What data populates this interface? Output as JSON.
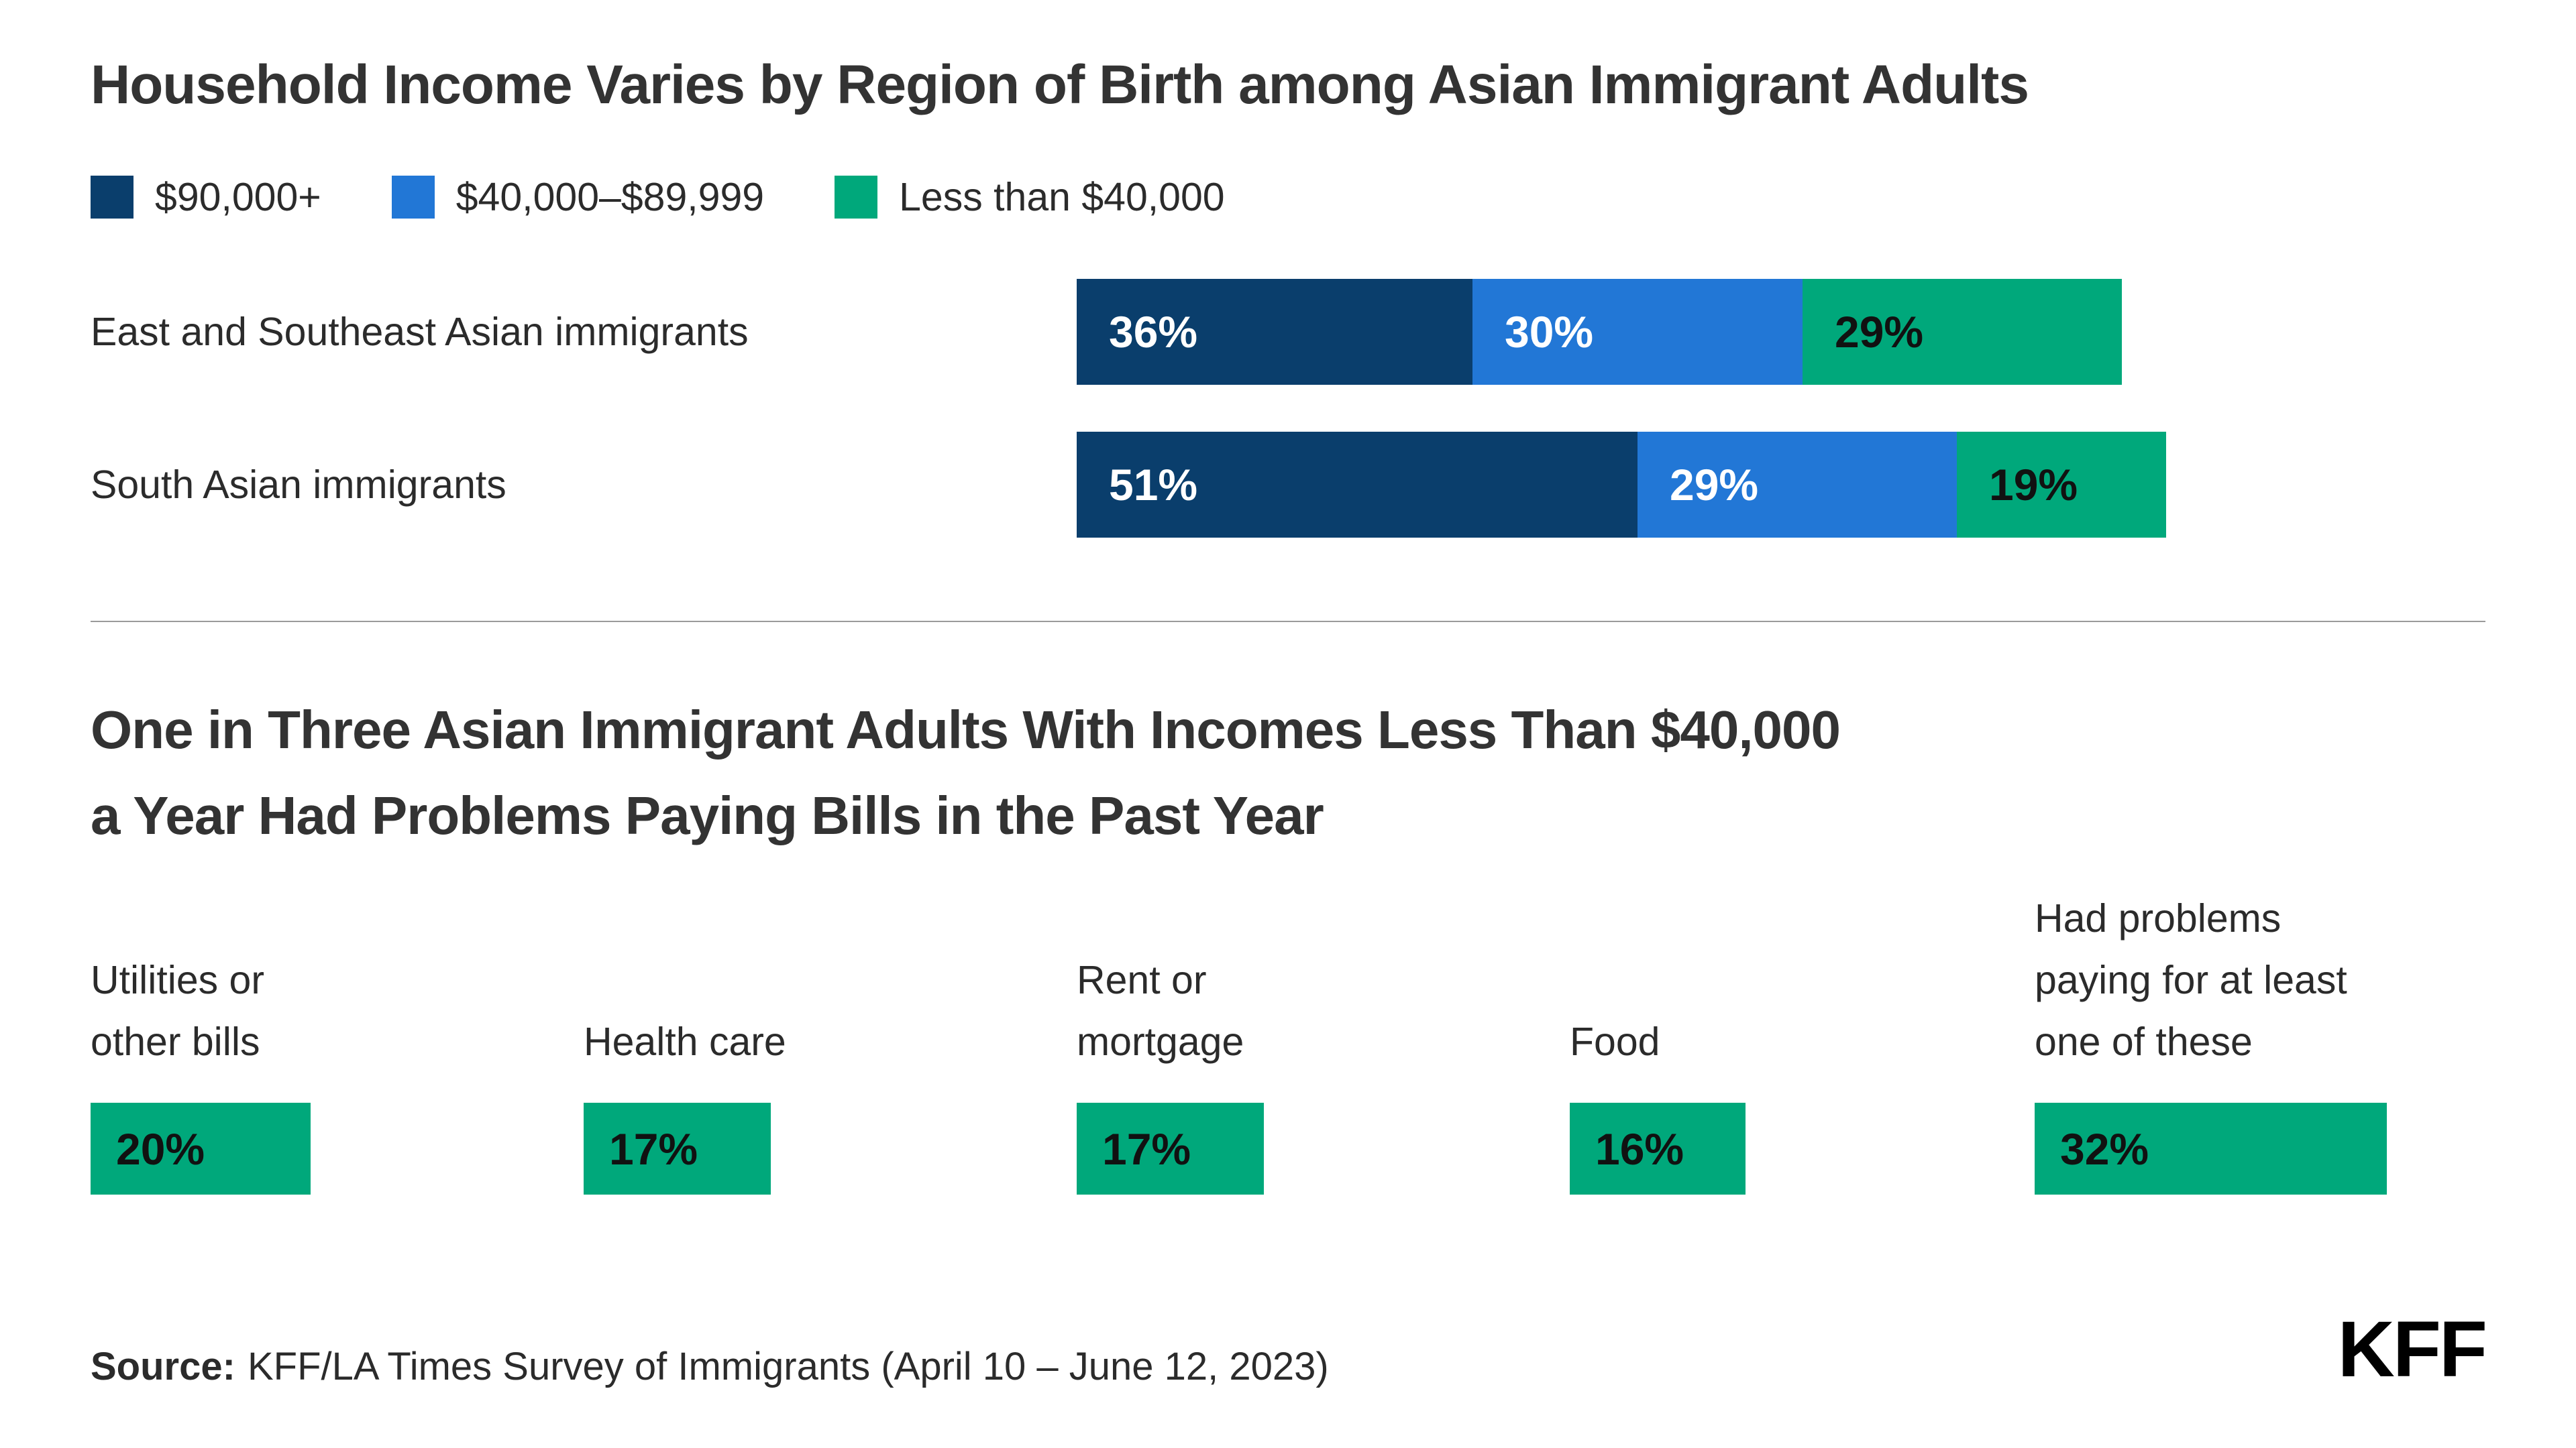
{
  "colors": {
    "dark_blue": "#0A3E6C",
    "mid_blue": "#2277D6",
    "green": "#00A87B",
    "title_text": "#333333",
    "body_text": "#2B2B2B",
    "divider": "#9A9A9A"
  },
  "chart_data": [
    {
      "type": "bar",
      "orientation": "horizontal",
      "stacked": true,
      "title": "Household Income Varies by Region of Birth among Asian Immigrant Adults",
      "categories": [
        "East and Southeast Asian immigrants",
        "South Asian immigrants"
      ],
      "series": [
        {
          "name": "$90,000+",
          "color": "#0A3E6C",
          "label_color": "#FFFFFF",
          "values": [
            36,
            51
          ]
        },
        {
          "name": "$40,000–$89,999",
          "color": "#2277D6",
          "label_color": "#FFFFFF",
          "values": [
            30,
            29
          ]
        },
        {
          "name": "Less than $40,000",
          "color": "#00A87B",
          "label_color": "#111111",
          "values": [
            29,
            19
          ]
        }
      ],
      "value_suffix": "%",
      "xlim": [
        0,
        100
      ],
      "legend_position": "top-left",
      "grid": false
    },
    {
      "type": "bar",
      "orientation": "horizontal",
      "stacked": false,
      "title": "One in Three Asian Immigrant Adults With Incomes Less Than $40,000 a Year Had Problems Paying Bills in the Past Year",
      "title_lines": [
        "One in Three Asian Immigrant Adults With Incomes Less Than $40,000",
        "a Year Had Problems Paying Bills in the Past Year"
      ],
      "categories": [
        "Utilities or other bills",
        "Health care",
        "Rent or mortgage",
        "Food",
        "Had problems paying for at least one of these"
      ],
      "category_lines": [
        [
          "Utilities or",
          "other bills"
        ],
        [
          "Health care"
        ],
        [
          "Rent or",
          "mortgage"
        ],
        [
          "Food"
        ],
        [
          "Had problems",
          "paying for at least",
          "one of these"
        ]
      ],
      "category_bold": [
        false,
        false,
        false,
        false,
        true
      ],
      "values": [
        20,
        17,
        17,
        16,
        32
      ],
      "bar_color": "#00A87B",
      "value_label_color": "#111111",
      "value_suffix": "%",
      "xlim": [
        0,
        100
      ],
      "grid": false
    }
  ],
  "source": {
    "label": "Source:",
    "text": "KFF/LA Times Survey of Immigrants (April 10 – June 12, 2023)"
  },
  "logo": {
    "text": "KFF"
  }
}
